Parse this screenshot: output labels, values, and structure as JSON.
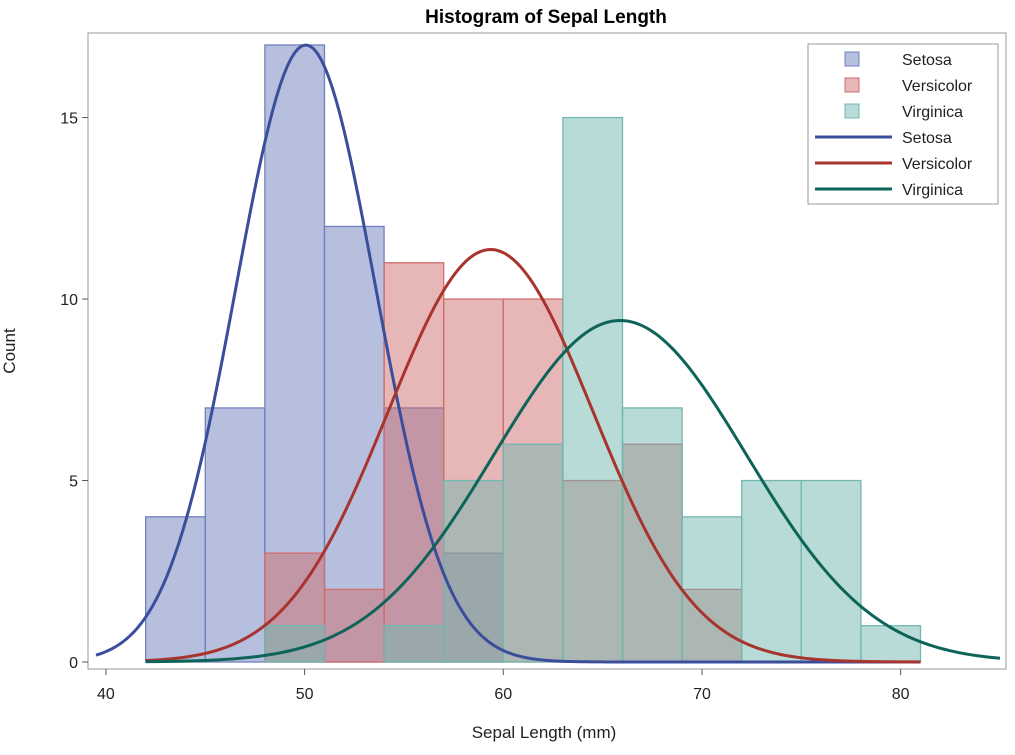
{
  "chart_data": {
    "type": "bar",
    "title": "Histogram of Sepal Length",
    "xlabel": "Sepal Length (mm)",
    "ylabel": "Count",
    "xlim": [
      39.5,
      85
    ],
    "ylim": [
      0,
      17
    ],
    "xticks": [
      40,
      50,
      60,
      70,
      80
    ],
    "yticks": [
      0,
      5,
      10,
      15
    ],
    "bin_width": 3,
    "legend_position": "top-right",
    "histograms": [
      {
        "name": "Setosa",
        "color": "#7080BE",
        "bin_starts": [
          42,
          45,
          48,
          51,
          54,
          57
        ],
        "counts": [
          4,
          7,
          17,
          12,
          7,
          3
        ]
      },
      {
        "name": "Versicolor",
        "color": "#D06E6E",
        "bin_starts": [
          48,
          51,
          54,
          57,
          60,
          63,
          66,
          69
        ],
        "counts": [
          3,
          2,
          11,
          10,
          10,
          5,
          6,
          2
        ]
      },
      {
        "name": "Virginica",
        "color": "#72B8B0",
        "bin_starts": [
          48,
          51,
          54,
          57,
          60,
          63,
          66,
          69,
          72,
          75,
          78
        ],
        "counts": [
          1,
          0,
          1,
          5,
          6,
          15,
          7,
          4,
          5,
          5,
          1
        ]
      }
    ],
    "curves": [
      {
        "name": "Setosa",
        "color": "#3A4E9C",
        "mean": 50.06,
        "sd": 3.52,
        "x_range": [
          39.5,
          81
        ]
      },
      {
        "name": "Versicolor",
        "color": "#A8342E",
        "mean": 59.36,
        "sd": 5.16,
        "x_range": [
          42,
          81
        ]
      },
      {
        "name": "Virginica",
        "color": "#0E6458",
        "mean": 65.88,
        "sd": 6.36,
        "x_range": [
          42,
          85
        ]
      }
    ],
    "legend": [
      {
        "label": "Setosa",
        "kind": "bar",
        "color": "#7080BE"
      },
      {
        "label": "Versicolor",
        "kind": "bar",
        "color": "#D06E6E"
      },
      {
        "label": "Virginica",
        "kind": "bar",
        "color": "#72B8B0"
      },
      {
        "label": "Setosa",
        "kind": "line",
        "color": "#3A4E9C"
      },
      {
        "label": "Versicolor",
        "kind": "line",
        "color": "#A8342E"
      },
      {
        "label": "Virginica",
        "kind": "line",
        "color": "#0E6458"
      }
    ]
  }
}
